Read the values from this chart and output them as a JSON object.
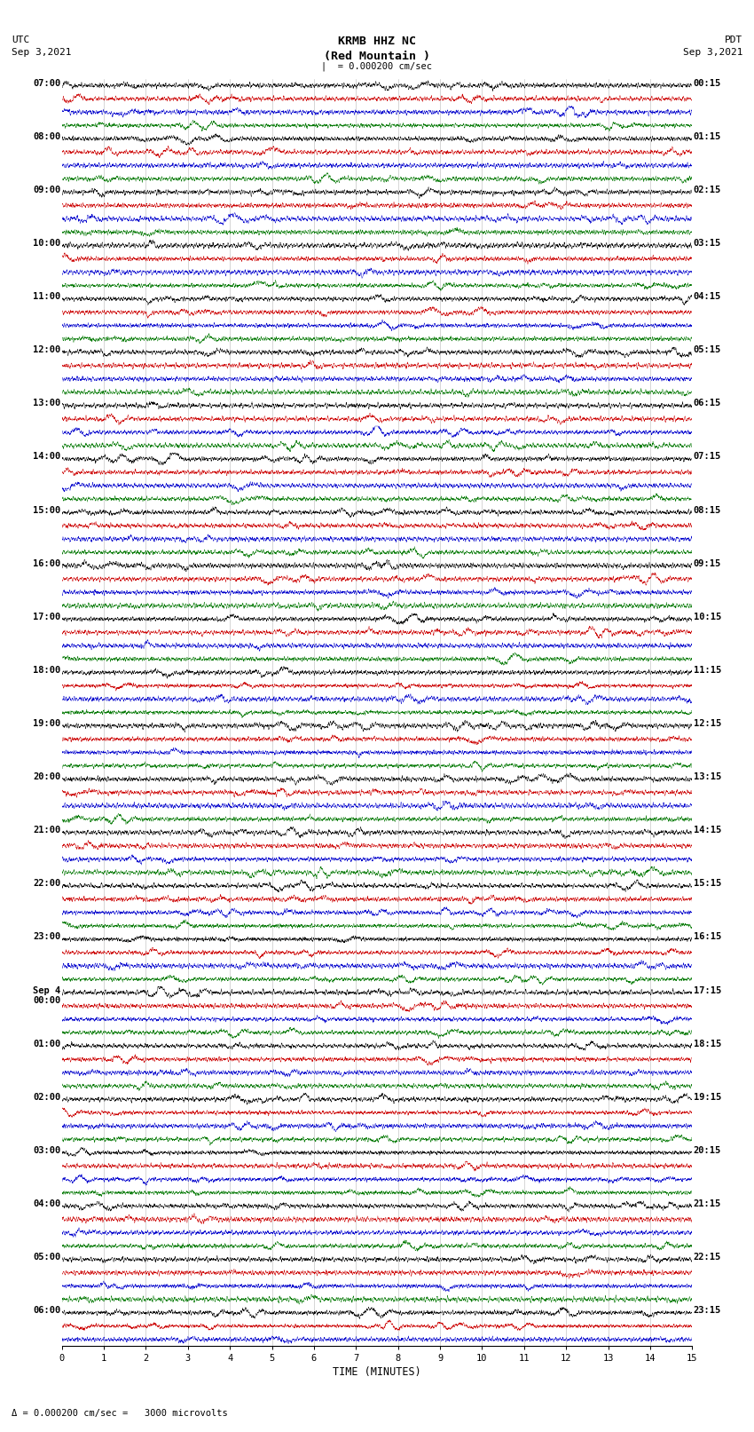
{
  "title_center": "KRMB HHZ NC\n(Red Mountain )",
  "title_left": "UTC\nSep 3,2021",
  "title_right": "PDT\nSep 3,2021",
  "scale_text": "| = 0.000200 cm/sec",
  "bottom_label": "Δ = 0.000200 cm/sec =   3000 microvolts",
  "xlabel": "TIME (MINUTES)",
  "xlim": [
    0,
    15
  ],
  "xticks": [
    0,
    1,
    2,
    3,
    4,
    5,
    6,
    7,
    8,
    9,
    10,
    11,
    12,
    13,
    14,
    15
  ],
  "fig_width": 8.5,
  "fig_height": 16.13,
  "dpi": 100,
  "bg_color": "#ffffff",
  "trace_colors": [
    "black",
    "#cc0000",
    "#0000cc",
    "#007700"
  ],
  "utc_labels": [
    "07:00",
    "08:00",
    "09:00",
    "10:00",
    "11:00",
    "12:00",
    "13:00",
    "14:00",
    "15:00",
    "16:00",
    "17:00",
    "18:00",
    "19:00",
    "20:00",
    "21:00",
    "22:00",
    "23:00",
    "Sep 4\n00:00",
    "01:00",
    "02:00",
    "03:00",
    "04:00",
    "05:00",
    "06:00"
  ],
  "pdt_labels": [
    "00:15",
    "01:15",
    "02:15",
    "03:15",
    "04:15",
    "05:15",
    "06:15",
    "07:15",
    "08:15",
    "09:15",
    "10:15",
    "11:15",
    "12:15",
    "13:15",
    "14:15",
    "15:15",
    "16:15",
    "17:15",
    "18:15",
    "19:15",
    "20:15",
    "21:15",
    "22:15",
    "23:15"
  ],
  "num_hours": 24,
  "traces_per_hour": 4,
  "last_hour_traces": 3,
  "random_seed": 12345
}
